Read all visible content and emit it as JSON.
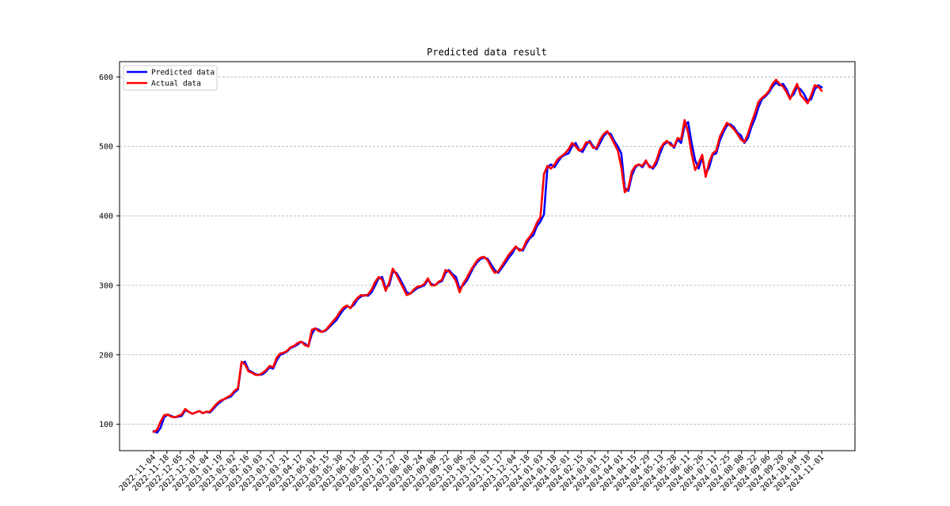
{
  "chart_data": {
    "type": "line",
    "title": "Predicted data result",
    "xlabel": "",
    "ylabel": "",
    "ylim": [
      62,
      622
    ],
    "yticks": [
      100,
      200,
      300,
      400,
      500,
      600
    ],
    "grid": "horizontal dashed",
    "legend_position": "top-left",
    "x_tick_labels": [
      "2022-11-04",
      "2022-11-18",
      "2022-12-05",
      "2022-12-19",
      "2023-01-04",
      "2023-01-19",
      "2023-02-02",
      "2023-02-16",
      "2023-03-03",
      "2023-03-17",
      "2023-03-31",
      "2023-04-17",
      "2023-05-01",
      "2023-05-15",
      "2023-05-30",
      "2023-06-13",
      "2023-06-28",
      "2023-07-13",
      "2023-07-27",
      "2023-08-10",
      "2023-08-24",
      "2023-09-08",
      "2023-09-22",
      "2023-10-06",
      "2023-10-20",
      "2023-11-03",
      "2023-11-17",
      "2023-12-04",
      "2023-12-18",
      "2024-01-03",
      "2024-01-18",
      "2024-02-01",
      "2024-02-15",
      "2024-03-01",
      "2024-03-15",
      "2024-04-01",
      "2024-04-15",
      "2024-04-29",
      "2024-05-13",
      "2024-05-28",
      "2024-06-11",
      "2024-06-26",
      "2024-07-11",
      "2024-07-25",
      "2024-08-08",
      "2024-08-22",
      "2024-09-06",
      "2024-09-20",
      "2024-10-04",
      "2024-10-18",
      "2024-11-01"
    ],
    "series": [
      {
        "name": "Predicted data",
        "color": "#0000ff",
        "values": [
          90,
          88,
          95,
          110,
          114,
          112,
          110,
          111,
          112,
          120,
          118,
          115,
          117,
          119,
          116,
          118,
          117,
          122,
          128,
          132,
          136,
          138,
          140,
          146,
          150,
          188,
          190,
          178,
          175,
          172,
          171,
          172,
          176,
          182,
          180,
          192,
          200,
          202,
          205,
          210,
          212,
          215,
          219,
          216,
          212,
          230,
          238,
          236,
          233,
          235,
          240,
          245,
          250,
          258,
          265,
          270,
          268,
          272,
          280,
          284,
          286,
          285,
          290,
          300,
          310,
          312,
          296,
          300,
          320,
          318,
          310,
          300,
          290,
          288,
          292,
          296,
          298,
          300,
          308,
          302,
          300,
          304,
          306,
          318,
          322,
          316,
          312,
          295,
          300,
          306,
          316,
          326,
          333,
          338,
          340,
          338,
          330,
          322,
          318,
          325,
          332,
          340,
          346,
          355,
          352,
          350,
          360,
          368,
          372,
          385,
          392,
          402,
          470,
          474,
          470,
          478,
          485,
          488,
          490,
          500,
          505,
          495,
          492,
          502,
          508,
          500,
          496,
          505,
          515,
          520,
          518,
          508,
          500,
          490,
          440,
          436,
          458,
          470,
          474,
          470,
          478,
          472,
          468,
          475,
          490,
          502,
          506,
          505,
          498,
          510,
          505,
          530,
          535,
          505,
          480,
          468,
          484,
          460,
          470,
          488,
          490,
          508,
          520,
          530,
          532,
          528,
          520,
          516,
          505,
          512,
          528,
          540,
          556,
          568,
          572,
          578,
          586,
          592,
          588,
          590,
          582,
          570,
          575,
          586,
          582,
          575,
          565,
          568,
          582,
          588,
          585
        ]
      },
      {
        "name": "Actual data",
        "color": "#ff0000",
        "values": [
          89,
          92,
          104,
          113,
          114,
          111,
          110,
          112,
          114,
          122,
          118,
          115,
          117,
          119,
          116,
          118,
          118,
          124,
          130,
          134,
          136,
          139,
          142,
          148,
          152,
          190,
          186,
          176,
          174,
          171,
          171,
          174,
          178,
          184,
          182,
          196,
          202,
          203,
          206,
          211,
          213,
          217,
          219,
          214,
          212,
          236,
          238,
          234,
          233,
          236,
          242,
          248,
          254,
          262,
          268,
          271,
          267,
          276,
          282,
          286,
          285,
          287,
          294,
          305,
          312,
          308,
          292,
          304,
          324,
          316,
          306,
          296,
          286,
          288,
          294,
          298,
          299,
          302,
          310,
          300,
          300,
          305,
          308,
          322,
          320,
          314,
          306,
          290,
          302,
          310,
          320,
          328,
          336,
          340,
          341,
          336,
          326,
          318,
          320,
          328,
          336,
          344,
          350,
          356,
          350,
          352,
          364,
          370,
          378,
          390,
          398,
          460,
          472,
          468,
          474,
          482,
          486,
          490,
          496,
          505,
          500,
          494,
          496,
          506,
          506,
          498,
          498,
          510,
          518,
          522,
          514,
          504,
          494,
          470,
          434,
          440,
          464,
          472,
          474,
          472,
          480,
          470,
          470,
          480,
          496,
          504,
          508,
          502,
          500,
          512,
          510,
          538,
          520,
          490,
          466,
          476,
          488,
          456,
          478,
          490,
          494,
          514,
          524,
          534,
          530,
          525,
          518,
          510,
          506,
          518,
          534,
          548,
          564,
          570,
          574,
          580,
          590,
          596,
          590,
          586,
          578,
          568,
          580,
          590,
          574,
          568,
          562,
          574,
          588,
          586,
          580
        ]
      }
    ]
  },
  "colors": {
    "predicted": "#0000ff",
    "actual": "#ff0000",
    "grid": "#b0b0b0"
  }
}
